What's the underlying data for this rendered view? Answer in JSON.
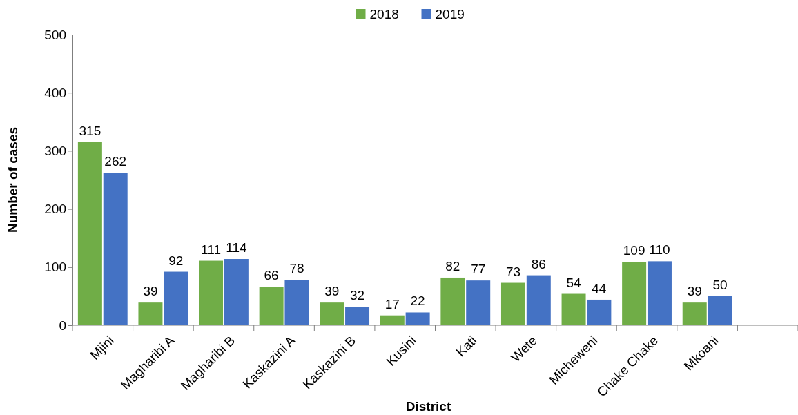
{
  "chart_data": {
    "type": "bar",
    "xlabel": "District",
    "ylabel": "Number of cases",
    "categories": [
      "Mjini",
      "Magharibi A",
      "Magharibi B",
      "Kaskazini A",
      "Kaskazini B",
      "Kusini",
      "Kati",
      "Wete",
      "Micheweni",
      "Chake Chake",
      "Mkoani",
      null
    ],
    "series": [
      {
        "name": "2018",
        "color": "#70ad47",
        "values": [
          315,
          39,
          111,
          66,
          39,
          17,
          82,
          73,
          54,
          109,
          39,
          null
        ]
      },
      {
        "name": "2019",
        "color": "#4472c4",
        "values": [
          262,
          92,
          114,
          78,
          32,
          22,
          77,
          86,
          44,
          110,
          50,
          null
        ]
      }
    ],
    "ylim": [
      0,
      500
    ],
    "yticks": [
      0,
      100,
      200,
      300,
      400,
      500
    ],
    "grid": false,
    "legend": "top",
    "data_labels": true
  }
}
